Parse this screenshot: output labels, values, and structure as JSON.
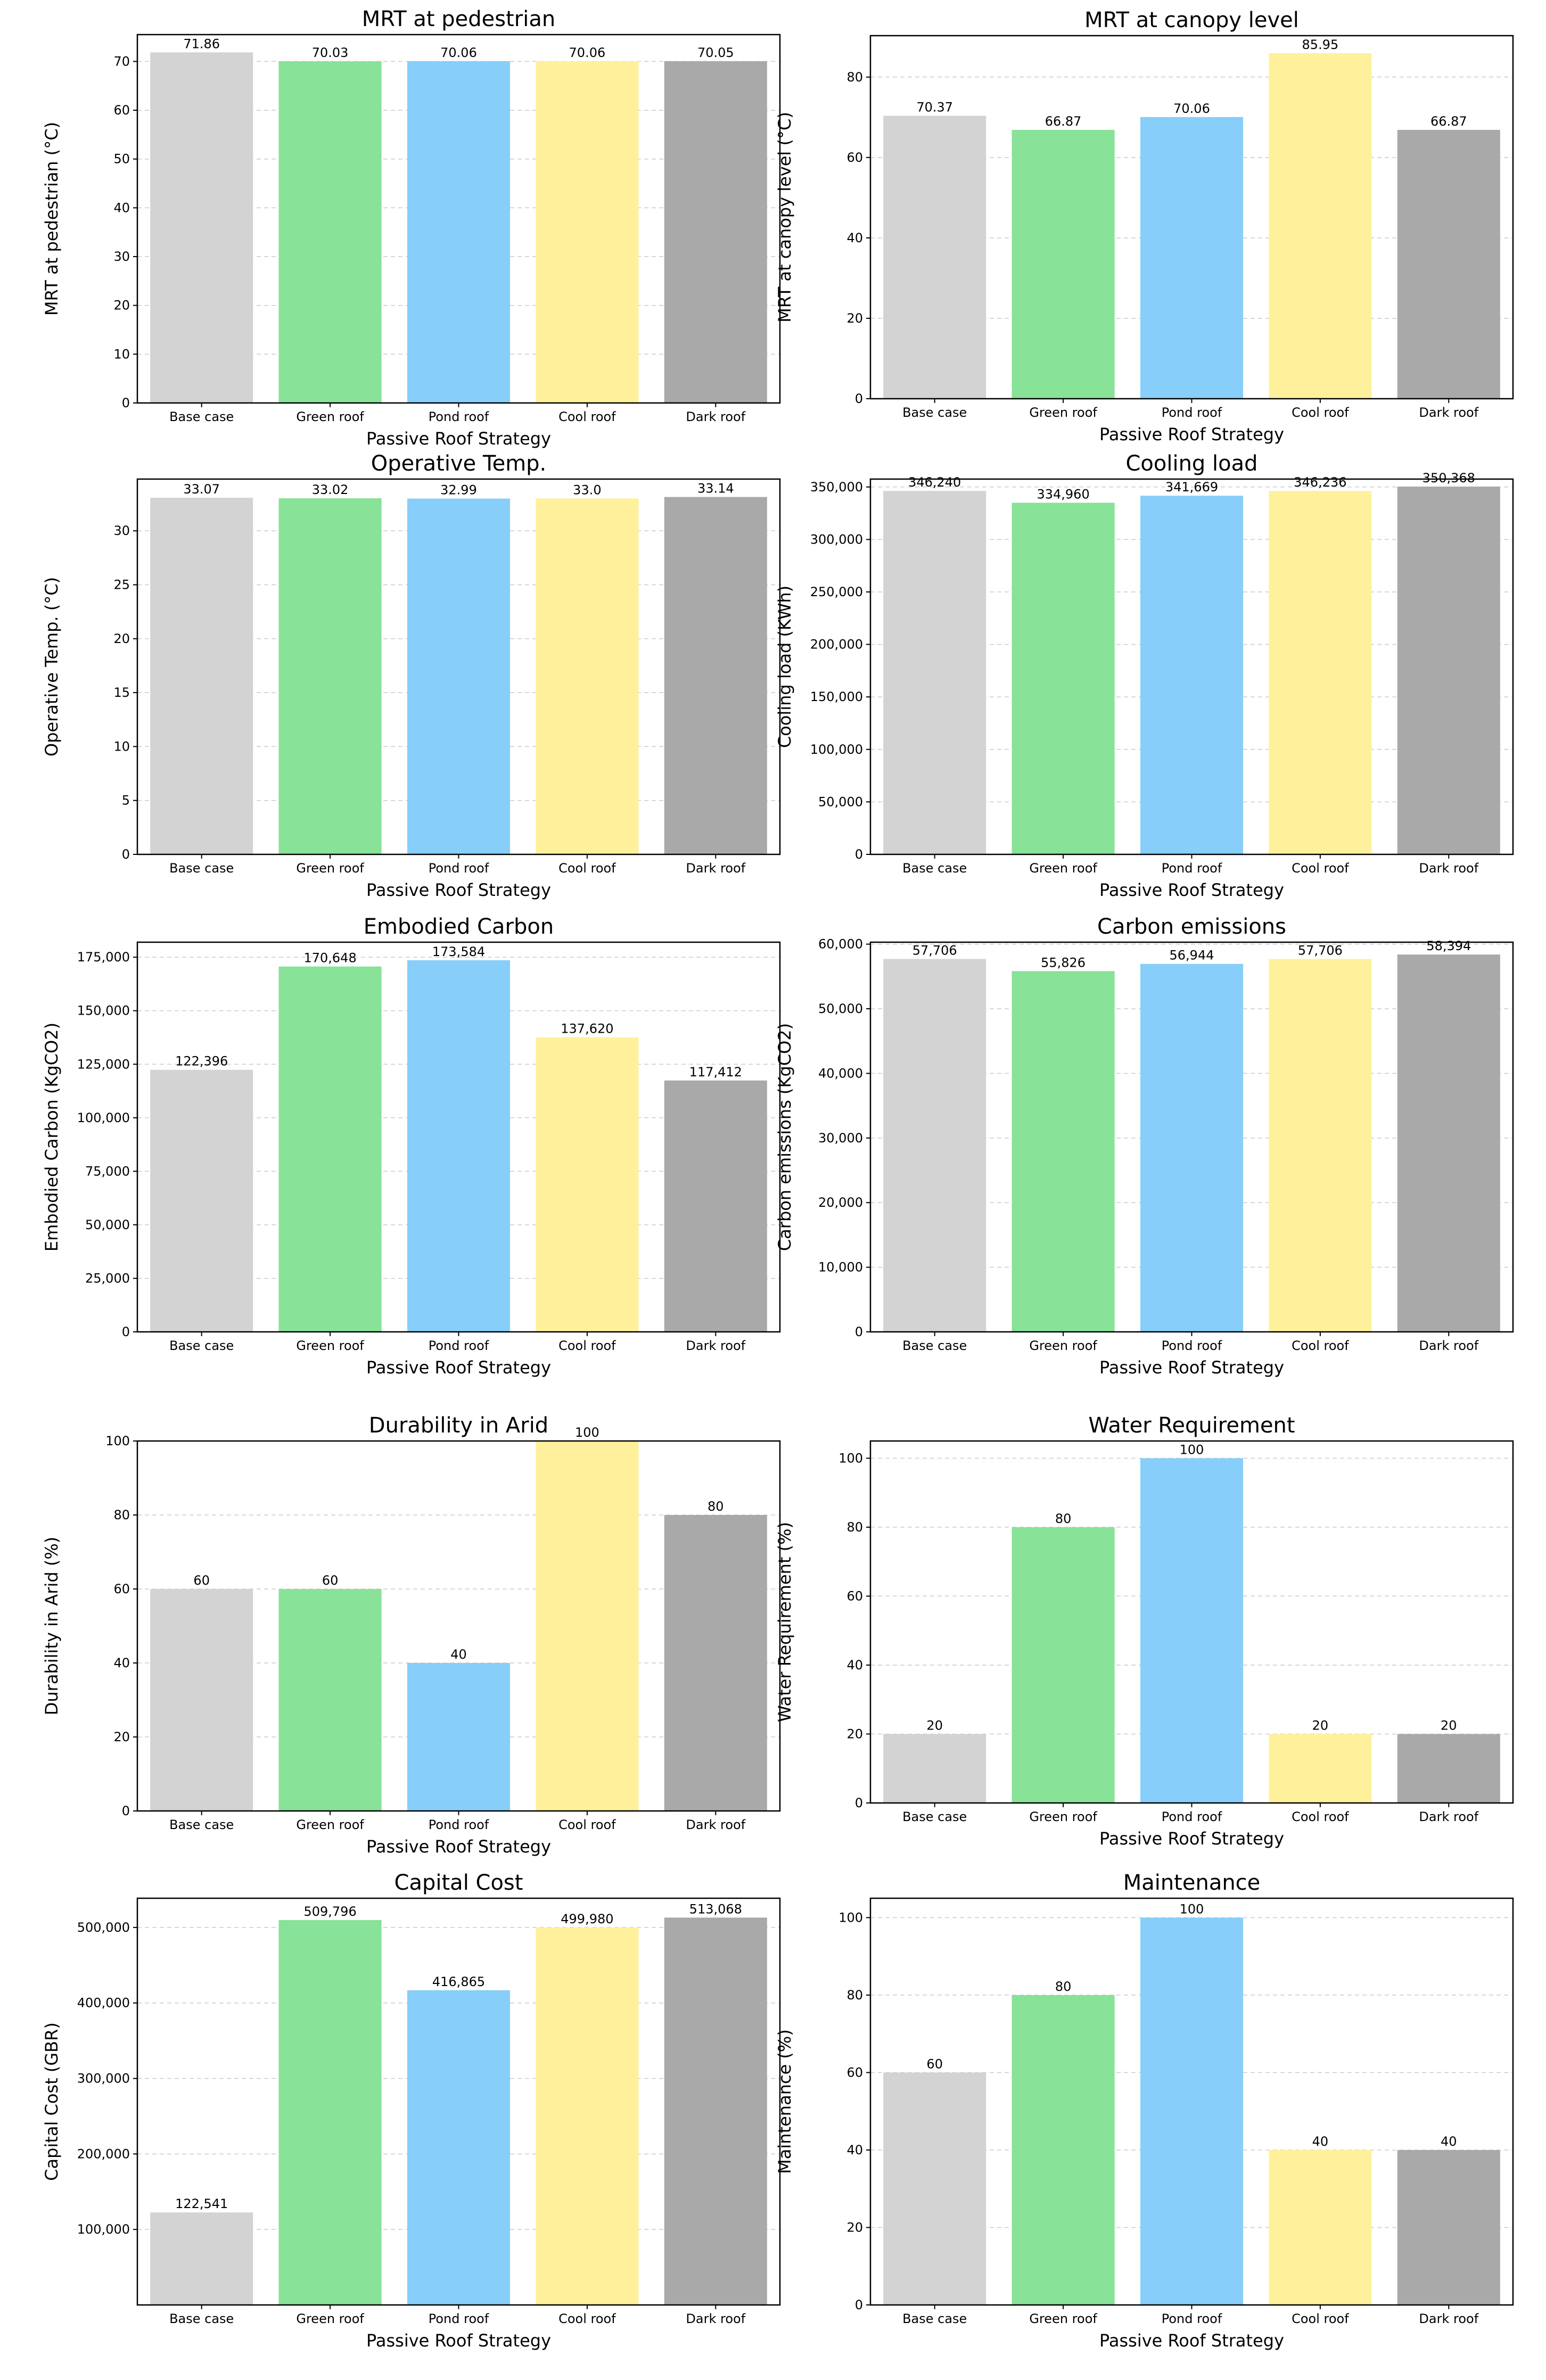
{
  "chart_data": [
    {
      "type": "bar",
      "title": "MRT at pedestrian",
      "xlabel": "Passive Roof Strategy",
      "ylabel": "MRT at pedestrian (°C)",
      "categories": [
        "Base case",
        "Green roof",
        "Pond roof",
        "Cool roof",
        "Dark roof"
      ],
      "values": [
        71.86,
        70.03,
        70.06,
        70.06,
        70.05
      ],
      "value_labels": [
        "71.86",
        "70.03",
        "70.06",
        "70.06",
        "70.05"
      ],
      "ylim": [
        0,
        75.5
      ],
      "yticks": [
        0,
        10,
        20,
        30,
        40,
        50,
        60,
        70
      ],
      "ytick_labels": [
        "0",
        "10",
        "20",
        "30",
        "40",
        "50",
        "60",
        "70"
      ],
      "grid": true
    },
    {
      "type": "bar",
      "title": "MRT at canopy level",
      "xlabel": "Passive Roof Strategy",
      "ylabel": "MRT at canopy level (°C)",
      "categories": [
        "Base case",
        "Green roof",
        "Pond roof",
        "Cool roof",
        "Dark roof"
      ],
      "values": [
        70.37,
        66.87,
        70.06,
        85.95,
        66.87
      ],
      "value_labels": [
        "70.37",
        "66.87",
        "70.06",
        "85.95",
        "66.87"
      ],
      "ylim": [
        0,
        90.3
      ],
      "yticks": [
        0,
        20,
        40,
        60,
        80
      ],
      "ytick_labels": [
        "0",
        "20",
        "40",
        "60",
        "80"
      ],
      "grid": true
    },
    {
      "type": "bar",
      "title": "Operative Temp.",
      "xlabel": "Passive Roof Strategy",
      "ylabel": "Operative Temp. (°C)",
      "categories": [
        "Base case",
        "Green roof",
        "Pond roof",
        "Cool roof",
        "Dark roof"
      ],
      "values": [
        33.07,
        33.02,
        32.99,
        33.0,
        33.14
      ],
      "value_labels": [
        "33.07",
        "33.02",
        "32.99",
        "33.0",
        "33.14"
      ],
      "ylim": [
        0,
        34.8
      ],
      "yticks": [
        0,
        5,
        10,
        15,
        20,
        25,
        30
      ],
      "ytick_labels": [
        "0",
        "5",
        "10",
        "15",
        "20",
        "25",
        "30"
      ],
      "grid": true
    },
    {
      "type": "bar",
      "title": "Cooling load",
      "xlabel": "Passive Roof Strategy",
      "ylabel": "Cooling load (KWh)",
      "categories": [
        "Base case",
        "Green roof",
        "Pond roof",
        "Cool roof",
        "Dark roof"
      ],
      "values": [
        346240,
        334960,
        341669,
        346236,
        350368
      ],
      "value_labels": [
        "346,240",
        "334,960",
        "341,669",
        "346,236",
        "350,368"
      ],
      "ylim": [
        0,
        357500
      ],
      "yticks": [
        0,
        50000,
        100000,
        150000,
        200000,
        250000,
        300000,
        350000
      ],
      "ytick_labels": [
        "0",
        "50,000",
        "100,000",
        "150,000",
        "200,000",
        "250,000",
        "300,000",
        "350,000"
      ],
      "grid": true
    },
    {
      "type": "bar",
      "title": "Embodied Carbon",
      "xlabel": "Passive Roof Strategy",
      "ylabel": "Embodied Carbon (KgCO2)",
      "categories": [
        "Base case",
        "Green roof",
        "Pond roof",
        "Cool roof",
        "Dark roof"
      ],
      "values": [
        122396,
        170648,
        173584,
        137620,
        117412
      ],
      "value_labels": [
        "122,396",
        "170,648",
        "173,584",
        "137,620",
        "117,412"
      ],
      "ylim": [
        0,
        182000
      ],
      "yticks": [
        0,
        25000,
        50000,
        75000,
        100000,
        125000,
        150000,
        175000
      ],
      "ytick_labels": [
        "0",
        "25,000",
        "50,000",
        "75,000",
        "100,000",
        "125,000",
        "150,000",
        "175,000"
      ],
      "grid": true
    },
    {
      "type": "bar",
      "title": "Carbon emissions",
      "xlabel": "Passive Roof Strategy",
      "ylabel": "Carbon emissions (KgCO2)",
      "categories": [
        "Base case",
        "Green roof",
        "Pond roof",
        "Cool roof",
        "Dark roof"
      ],
      "values": [
        57706,
        55826,
        56944,
        57706,
        58394
      ],
      "value_labels": [
        "57,706",
        "55,826",
        "56,944",
        "57,706",
        "58,394"
      ],
      "ylim": [
        0,
        60300
      ],
      "yticks": [
        0,
        10000,
        20000,
        30000,
        40000,
        50000,
        60000
      ],
      "ytick_labels": [
        "0",
        "10,000",
        "20,000",
        "30,000",
        "40,000",
        "50,000",
        "60,000"
      ],
      "grid": true
    },
    {
      "type": "bar",
      "title": "Durability in Arid",
      "xlabel": "Passive Roof Strategy",
      "ylabel": "Durability in Arid (%)",
      "categories": [
        "Base case",
        "Green roof",
        "Pond roof",
        "Cool roof",
        "Dark roof"
      ],
      "values": [
        60,
        60,
        40,
        100,
        80
      ],
      "value_labels": [
        "60",
        "60",
        "40",
        "100",
        "80"
      ],
      "ylim": [
        0,
        100
      ],
      "yticks": [
        0,
        20,
        40,
        60,
        80,
        100
      ],
      "ytick_labels": [
        "0",
        "20",
        "40",
        "60",
        "80",
        "100"
      ],
      "grid": true
    },
    {
      "type": "bar",
      "title": "Water Requirement",
      "xlabel": "Passive Roof Strategy",
      "ylabel": "Water Requirement (%)",
      "categories": [
        "Base case",
        "Green roof",
        "Pond roof",
        "Cool roof",
        "Dark roof"
      ],
      "values": [
        20,
        80,
        100,
        20,
        20
      ],
      "value_labels": [
        "20",
        "80",
        "100",
        "20",
        "20"
      ],
      "ylim": [
        0,
        105
      ],
      "yticks": [
        0,
        20,
        40,
        60,
        80,
        100
      ],
      "ytick_labels": [
        "0",
        "20",
        "40",
        "60",
        "80",
        "100"
      ],
      "grid": true
    },
    {
      "type": "bar",
      "title": "Capital Cost",
      "xlabel": "Passive Roof Strategy",
      "ylabel": "Capital Cost (GBR)",
      "categories": [
        "Base case",
        "Green roof",
        "Pond roof",
        "Cool roof",
        "Dark roof"
      ],
      "values": [
        122541,
        509796,
        416865,
        499980,
        513068
      ],
      "value_labels": [
        "122,541",
        "509,796",
        "416,865",
        "499,980",
        "513,068"
      ],
      "ylim": [
        0,
        538700
      ],
      "yticks": [
        100000,
        200000,
        300000,
        400000,
        500000
      ],
      "ytick_labels": [
        "100,000",
        "200,000",
        "300,000",
        "400,000",
        "500,000"
      ],
      "grid": true
    },
    {
      "type": "bar",
      "title": "Maintenance",
      "xlabel": "Passive Roof Strategy",
      "ylabel": "Maintenance (%)",
      "categories": [
        "Base case",
        "Green roof",
        "Pond roof",
        "Cool roof",
        "Dark roof"
      ],
      "values": [
        60,
        80,
        100,
        40,
        40
      ],
      "value_labels": [
        "60",
        "80",
        "100",
        "40",
        "40"
      ],
      "ylim": [
        0,
        105
      ],
      "yticks": [
        0,
        20,
        40,
        60,
        80,
        100
      ],
      "ytick_labels": [
        "0",
        "20",
        "40",
        "60",
        "80",
        "100"
      ],
      "grid": true
    }
  ],
  "colors": {
    "base_case": "#d3d3d3",
    "green_roof": "#88e298",
    "pond_roof": "#87cefa",
    "cool_roof": "#fff19b",
    "dark_roof": "#a9a9a9"
  }
}
